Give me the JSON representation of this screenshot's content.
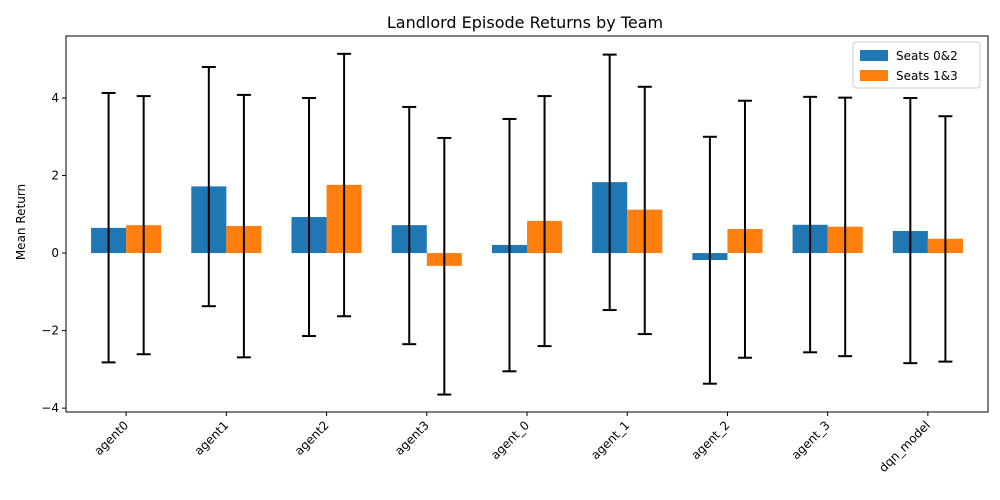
{
  "chart_data": {
    "type": "bar",
    "title": "Landlord Episode Returns by Team",
    "xlabel": "",
    "ylabel": "Mean Return",
    "categories": [
      "agent0",
      "agent1",
      "agent2",
      "agent3",
      "agent_0",
      "agent_1",
      "agent_2",
      "agent_3",
      "dqn_model"
    ],
    "series": [
      {
        "name": "Seats 0&2",
        "color": "#1f77b4",
        "values": [
          0.65,
          1.72,
          0.93,
          0.72,
          0.21,
          1.83,
          -0.18,
          0.73,
          0.57
        ],
        "err_low": [
          -2.82,
          -1.37,
          -2.14,
          -2.35,
          -3.05,
          -1.47,
          -3.37,
          -2.56,
          -2.84
        ],
        "err_high": [
          4.13,
          4.8,
          4.0,
          3.77,
          3.46,
          5.12,
          3.0,
          4.03,
          4.0
        ]
      },
      {
        "name": "Seats 1&3",
        "color": "#ff7f0e",
        "values": [
          0.72,
          0.7,
          1.76,
          -0.33,
          0.83,
          1.12,
          0.62,
          0.68,
          0.37
        ],
        "err_low": [
          -2.61,
          -2.69,
          -1.63,
          -3.65,
          -2.4,
          -2.09,
          -2.7,
          -2.66,
          -2.8
        ],
        "err_high": [
          4.05,
          4.08,
          5.14,
          2.97,
          4.05,
          4.29,
          3.93,
          4.01,
          3.53
        ]
      }
    ],
    "ylim": [
      -4.1,
      5.6
    ],
    "yticks": [
      -4,
      -2,
      0,
      2,
      4
    ],
    "grid": false,
    "legend_position": "top-right"
  }
}
